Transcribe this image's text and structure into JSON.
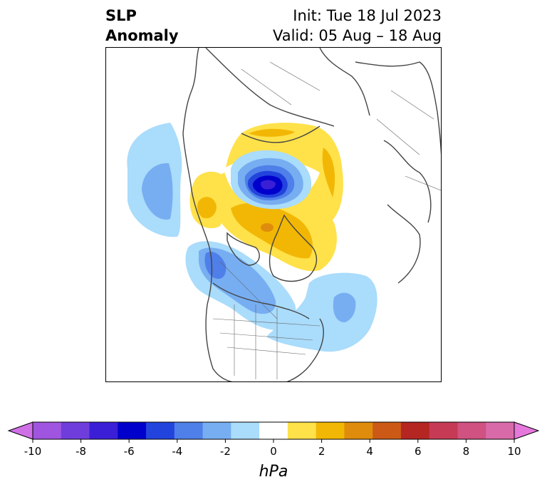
{
  "title": {
    "left_line1": "SLP",
    "left_line2": "Anomaly",
    "init": "Init: Tue 18 Jul 2023",
    "valid": "Valid: 05 Aug – 18 Aug"
  },
  "colorbar": {
    "unit_label": "hPa",
    "ticks": [
      -10,
      -8,
      -6,
      -4,
      -2,
      0,
      2,
      4,
      6,
      8,
      10
    ],
    "extend": "both",
    "colors": {
      "neg_extend": "#d070e6",
      "bins": [
        "#a055e0",
        "#6e3ddc",
        "#3a1fd6",
        "#0000cc",
        "#2244dd",
        "#4f7fe8",
        "#77aef2",
        "#aadcfb",
        "#ffffff",
        "#ffe14a",
        "#f2b705",
        "#df8c0c",
        "#cc5a16",
        "#b52522",
        "#c63a55",
        "#cf5280",
        "#d86aaa"
      ],
      "pos_extend": "#e678dc"
    }
  },
  "map": {
    "projection": "north-polar-stereographic",
    "anomaly_features": [
      {
        "label": "negative",
        "color": "#0000cc",
        "approx_value": -6
      },
      {
        "label": "positive",
        "color": "#f2b705",
        "approx_value": 3
      }
    ]
  }
}
